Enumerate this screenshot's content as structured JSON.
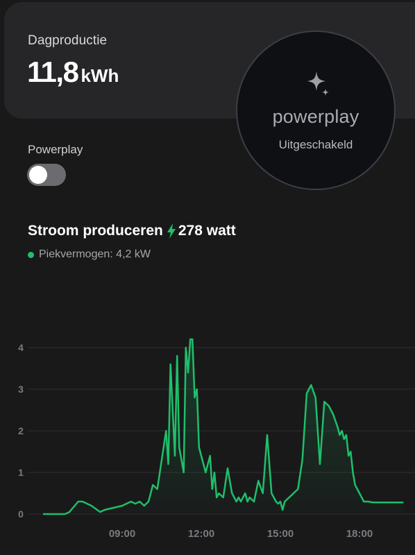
{
  "card": {
    "label": "Dagproductie",
    "value": "11,8",
    "unit": "kWh"
  },
  "powerplay": {
    "title": "powerplay",
    "status": "Uitgeschakeld",
    "icon": "sparkle-icon"
  },
  "toggle": {
    "label": "Powerplay",
    "on": false
  },
  "production": {
    "title": "Stroom produceren",
    "icon": "lightning-bolt-icon",
    "current": "278 watt",
    "peak": "Piekvermogen: 4,2 kW"
  },
  "colors": {
    "accent": "#1fbf6a",
    "background": "#19191a",
    "card": "#262628"
  },
  "chart_data": {
    "type": "area",
    "x_ticks": [
      "09:00",
      "12:00",
      "15:00",
      "18:00"
    ],
    "y_ticks": [
      "0",
      "1",
      "2",
      "3",
      "4"
    ],
    "ylim": [
      0,
      4.3
    ],
    "xlim": [
      "06:00",
      "20:00"
    ],
    "grid": true,
    "unit": "kW",
    "series": [
      {
        "x": [
          "06:00",
          "06:30",
          "06:50",
          "07:00",
          "07:20",
          "07:30",
          "07:50",
          "08:10",
          "08:20",
          "08:40",
          "09:00",
          "09:20",
          "09:30",
          "09:40",
          "09:50",
          "10:00",
          "10:10",
          "10:20",
          "10:30",
          "10:40",
          "10:45",
          "10:50",
          "11:00",
          "11:05",
          "11:10",
          "11:20",
          "11:25",
          "11:30",
          "11:35",
          "11:40",
          "11:45",
          "11:50",
          "11:55",
          "12:00",
          "12:05",
          "12:10",
          "12:20",
          "12:25",
          "12:30",
          "12:35",
          "12:40",
          "12:50",
          "13:00",
          "13:10",
          "13:20",
          "13:25",
          "13:30",
          "13:40",
          "13:45",
          "13:50",
          "14:00",
          "14:10",
          "14:20",
          "14:30",
          "14:40",
          "14:50",
          "14:55",
          "15:00",
          "15:05",
          "15:10",
          "15:20",
          "15:30",
          "15:40",
          "15:50",
          "16:00",
          "16:10",
          "16:20",
          "16:30",
          "16:40",
          "16:50",
          "17:00",
          "17:10",
          "17:15",
          "17:20",
          "17:25",
          "17:30",
          "17:35",
          "17:40",
          "17:45",
          "17:50",
          "18:00",
          "18:10",
          "18:20",
          "18:30",
          "18:40",
          "18:50",
          "19:00",
          "19:10",
          "19:20",
          "19:30",
          "19:40"
        ],
        "y": [
          0,
          0,
          0,
          0.05,
          0.3,
          0.3,
          0.2,
          0.05,
          0.1,
          0.15,
          0.2,
          0.3,
          0.25,
          0.3,
          0.2,
          0.3,
          0.7,
          0.6,
          1.3,
          2.0,
          1.2,
          3.6,
          1.4,
          3.8,
          1.6,
          1.0,
          4.0,
          3.4,
          4.2,
          4.2,
          2.8,
          3.0,
          1.6,
          1.4,
          1.2,
          1.0,
          1.4,
          0.6,
          1.0,
          0.4,
          0.5,
          0.4,
          1.1,
          0.5,
          0.3,
          0.4,
          0.3,
          0.5,
          0.3,
          0.4,
          0.3,
          0.8,
          0.5,
          1.9,
          0.5,
          0.3,
          0.25,
          0.3,
          0.1,
          0.3,
          0.4,
          0.5,
          0.6,
          1.3,
          2.9,
          3.1,
          2.8,
          1.2,
          2.7,
          2.6,
          2.4,
          2.1,
          1.9,
          2.0,
          1.8,
          1.9,
          1.4,
          1.5,
          1.0,
          0.7,
          0.5,
          0.3,
          0.3,
          0.28,
          0.28,
          0.28,
          0.28,
          0.28,
          0.28,
          0.28,
          0.28
        ]
      }
    ]
  }
}
